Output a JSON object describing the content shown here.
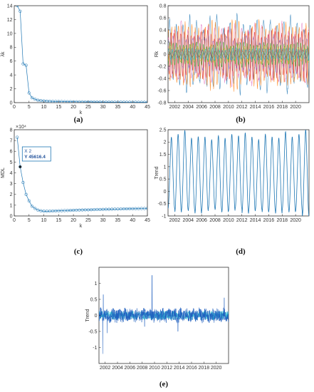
{
  "chart_data": [
    {
      "type": "line",
      "panel": "a",
      "caption": "(a)",
      "xlabel": "k",
      "ylabel": "λk",
      "xlim": [
        0,
        45
      ],
      "ylim": [
        0,
        14
      ],
      "xticks": [
        "0",
        "5",
        "10",
        "15",
        "20",
        "25",
        "30",
        "35",
        "40",
        "45"
      ],
      "yticks": [
        "0",
        "2",
        "4",
        "6",
        "8",
        "10",
        "12",
        "14"
      ],
      "markers": "circle",
      "x": [
        1,
        2,
        3,
        4,
        5,
        6,
        7,
        8,
        9,
        10,
        11,
        12,
        13,
        14,
        15,
        16,
        17,
        18,
        19,
        20,
        21,
        22,
        23,
        24,
        25,
        26,
        27,
        28,
        29,
        30,
        31,
        32,
        33,
        34,
        35,
        36,
        37,
        38,
        39,
        40,
        41,
        42,
        43,
        44,
        45
      ],
      "values": [
        14.0,
        13.2,
        5.6,
        5.4,
        1.4,
        0.7,
        0.5,
        0.35,
        0.3,
        0.25,
        0.22,
        0.2,
        0.18,
        0.17,
        0.16,
        0.15,
        0.14,
        0.13,
        0.13,
        0.12,
        0.12,
        0.11,
        0.11,
        0.1,
        0.1,
        0.1,
        0.09,
        0.09,
        0.09,
        0.08,
        0.08,
        0.08,
        0.08,
        0.07,
        0.07,
        0.07,
        0.07,
        0.06,
        0.06,
        0.06,
        0.06,
        0.05,
        0.05,
        0.05,
        0.05
      ],
      "color": "#1f77b4"
    },
    {
      "type": "line",
      "panel": "b",
      "caption": "(b)",
      "xlabel": "",
      "ylabel": "Rk",
      "xlim": [
        2001,
        2022
      ],
      "ylim": [
        -0.8,
        0.8
      ],
      "xticks": [
        "2002",
        "2004",
        "2006",
        "2008",
        "2010",
        "2012",
        "2014",
        "2016",
        "2018",
        "2020"
      ],
      "yticks": [
        "-0.8",
        "-0.6",
        "-0.4",
        "-0.2",
        "0",
        "0.2",
        "0.4",
        "0.6",
        "0.8"
      ],
      "series": [
        {
          "amplitude": 0.6,
          "color": "#1f77b4"
        },
        {
          "amplitude": 0.55,
          "color": "#ff7f0e"
        },
        {
          "amplitude": 0.5,
          "color": "#e377c2"
        },
        {
          "amplitude": 0.4,
          "color": "#d62728"
        },
        {
          "amplitude": 0.3,
          "color": "#9467bd"
        },
        {
          "amplitude": 0.2,
          "color": "#2ca02c"
        },
        {
          "amplitude": 0.15,
          "color": "#bcbd22"
        },
        {
          "amplitude": 0.1,
          "color": "#17becf"
        },
        {
          "amplitude": 0.06,
          "color": "#8c564b"
        }
      ]
    },
    {
      "type": "line",
      "panel": "c",
      "caption": "(c)",
      "xlabel": "k",
      "ylabel": "MDL",
      "exponent_label": "×10⁴",
      "xlim": [
        0,
        45
      ],
      "ylim": [
        0,
        8
      ],
      "xticks": [
        "0",
        "5",
        "10",
        "15",
        "20",
        "25",
        "30",
        "35",
        "40",
        "45"
      ],
      "yticks": [
        "0",
        "1",
        "2",
        "3",
        "4",
        "5",
        "6",
        "7",
        "8"
      ],
      "markers": "circle",
      "x": [
        1,
        2,
        3,
        4,
        5,
        6,
        7,
        8,
        9,
        10,
        11,
        12,
        13,
        14,
        15,
        16,
        17,
        18,
        19,
        20,
        21,
        22,
        23,
        24,
        25,
        26,
        27,
        28,
        29,
        30,
        31,
        32,
        33,
        34,
        35,
        36,
        37,
        38,
        39,
        40,
        41,
        42,
        43,
        44,
        45
      ],
      "values": [
        7.3,
        4.5616,
        3.1,
        2.0,
        1.4,
        0.9,
        0.7,
        0.55,
        0.48,
        0.44,
        0.44,
        0.45,
        0.46,
        0.47,
        0.48,
        0.49,
        0.5,
        0.51,
        0.52,
        0.53,
        0.54,
        0.55,
        0.56,
        0.57,
        0.57,
        0.58,
        0.59,
        0.6,
        0.6,
        0.61,
        0.62,
        0.62,
        0.63,
        0.64,
        0.64,
        0.65,
        0.66,
        0.66,
        0.67,
        0.67,
        0.68,
        0.68,
        0.69,
        0.69,
        0.7
      ],
      "datatip": {
        "x_text": "X 2",
        "y_text": "Y 45616.4",
        "x": 2,
        "y": 4.5616
      },
      "color": "#1f77b4"
    },
    {
      "type": "line",
      "panel": "d",
      "caption": "(d)",
      "xlabel": "",
      "ylabel": "Trend",
      "xlim": [
        2001,
        2022
      ],
      "ylim": [
        -1,
        2.5
      ],
      "xticks": [
        "2002",
        "2004",
        "2006",
        "2008",
        "2010",
        "2012",
        "2014",
        "2016",
        "2018",
        "2020"
      ],
      "yticks": [
        "-1",
        "-0.5",
        "0",
        "0.5",
        "1",
        "1.5",
        "2",
        "2.5"
      ],
      "peaks": [
        2.0,
        2.1,
        2.25,
        1.95,
        2.0,
        2.0,
        1.9,
        2.05,
        1.95,
        2.1,
        2.05,
        2.15,
        2.0,
        1.9,
        2.1,
        2.0,
        1.95,
        2.2,
        2.0,
        2.1,
        2.25
      ],
      "troughs": [
        -0.7,
        -0.85,
        -0.75,
        -0.8,
        -0.9,
        -0.8,
        -0.7,
        -0.75,
        -0.85,
        -0.8,
        -0.7,
        -0.9,
        -0.8,
        -0.75,
        -0.85,
        -0.8,
        -0.9,
        -0.75,
        -0.85,
        -0.8,
        -1.0
      ],
      "color": "#1f77b4"
    },
    {
      "type": "line",
      "panel": "e",
      "caption": "(e)",
      "xlabel": "",
      "ylabel": "Trend",
      "xlim": [
        2001,
        2022
      ],
      "ylim": [
        -1.5,
        1.5
      ],
      "xticks": [
        "2002",
        "2004",
        "2006",
        "2008",
        "2010",
        "2012",
        "2014",
        "2016",
        "2018",
        "2020"
      ],
      "yticks": [
        "-1",
        "-0.5",
        "0",
        "0.5",
        "1"
      ],
      "noise_amplitude": 0.2,
      "spikes": [
        {
          "x": 2001.6,
          "y": -1.2
        },
        {
          "x": 2001.7,
          "y": 0.65
        },
        {
          "x": 2002.3,
          "y": -0.55
        },
        {
          "x": 2009.6,
          "y": 1.25
        },
        {
          "x": 2008.4,
          "y": -0.35
        },
        {
          "x": 2013.8,
          "y": -0.5
        },
        {
          "x": 2021.3,
          "y": 0.55
        }
      ],
      "color": "#1f5fbf",
      "color2": "#17becf"
    }
  ]
}
